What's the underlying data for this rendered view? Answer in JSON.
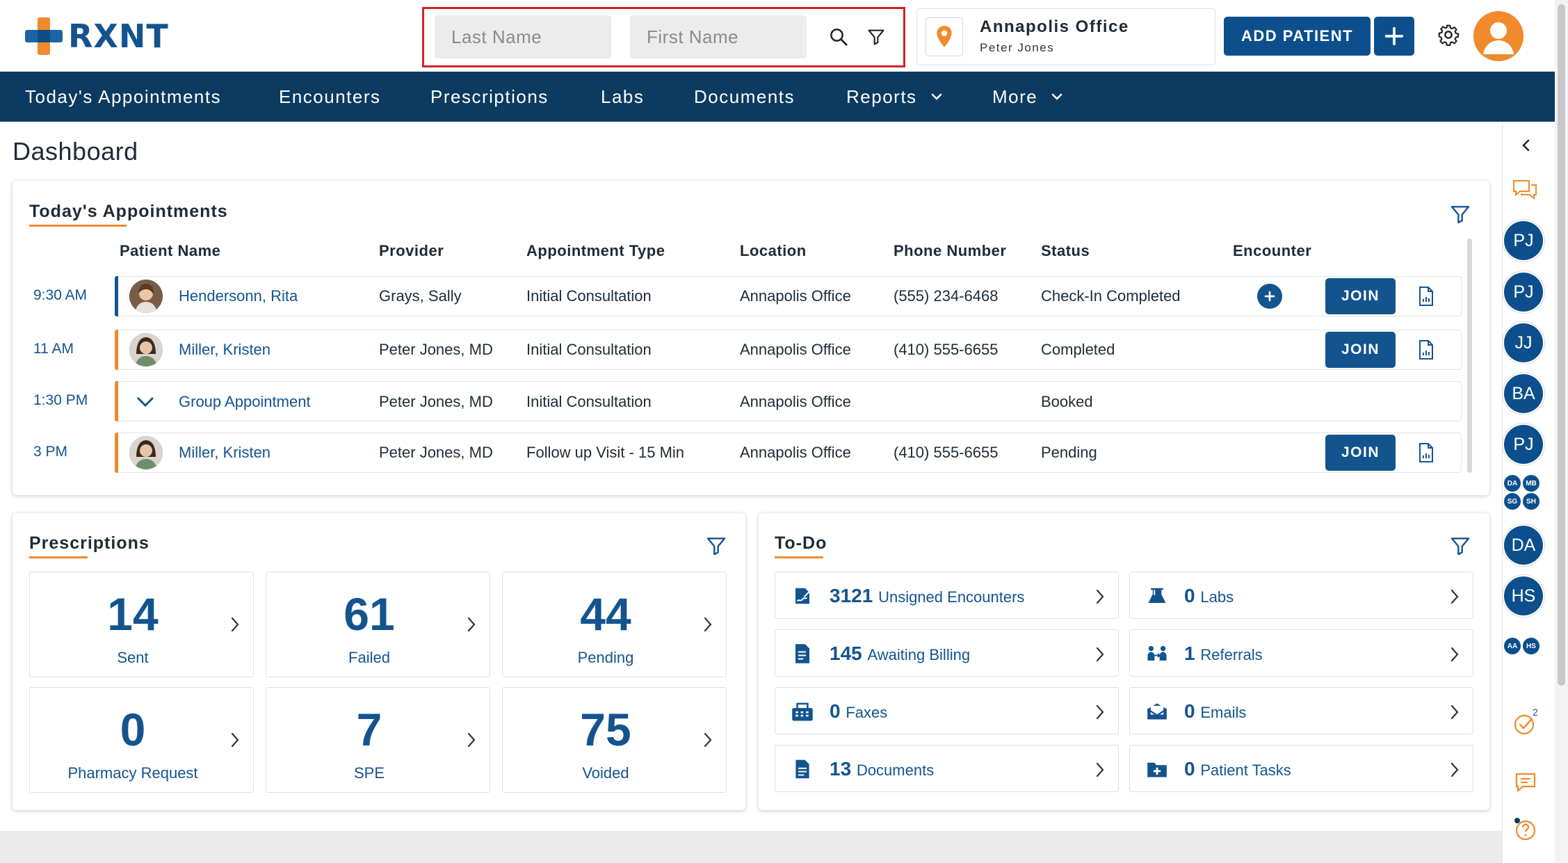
{
  "header": {
    "logo_text": "RXNT",
    "search": {
      "last_name_placeholder": "Last Name",
      "first_name_placeholder": "First Name"
    },
    "office": {
      "name": "Annapolis Office",
      "user": "Peter Jones"
    },
    "add_patient_label": "ADD PATIENT"
  },
  "nav": {
    "items": [
      {
        "label": "Today's Appointments"
      },
      {
        "label": "Encounters"
      },
      {
        "label": "Prescriptions"
      },
      {
        "label": "Labs"
      },
      {
        "label": "Documents"
      },
      {
        "label": "Reports"
      },
      {
        "label": "More"
      }
    ]
  },
  "page": {
    "title": "Dashboard"
  },
  "appointments": {
    "title": "Today's Appointments",
    "columns": [
      "Patient Name",
      "Provider",
      "Appointment Type",
      "Location",
      "Phone Number",
      "Status",
      "Encounter"
    ],
    "rows": [
      {
        "time": "9:30 AM",
        "patient": "Hendersonn, Rita",
        "provider": "Grays, Sally",
        "type": "Initial Consultation",
        "location": "Annapolis Office",
        "phone": "(555) 234-6468",
        "status": "Check-In Completed",
        "join_label": "JOIN"
      },
      {
        "time": "11 AM",
        "patient": "Miller, Kristen",
        "provider": "Peter Jones, MD",
        "type": "Initial Consultation",
        "location": "Annapolis Office",
        "phone": "(410) 555-6655",
        "status": "Completed",
        "join_label": "JOIN"
      },
      {
        "time": "1:30 PM",
        "patient": "Group Appointment",
        "provider": "Peter Jones, MD",
        "type": "Initial Consultation",
        "location": "Annapolis Office",
        "phone": "",
        "status": "Booked"
      },
      {
        "time": "3 PM",
        "patient": "Miller, Kristen",
        "provider": "Peter Jones, MD",
        "type": "Follow up Visit - 15 Min",
        "location": "Annapolis Office",
        "phone": "(410) 555-6655",
        "status": "Pending",
        "join_label": "JOIN"
      }
    ]
  },
  "prescriptions": {
    "title": "Prescriptions",
    "tiles": [
      {
        "value": "14",
        "label": "Sent"
      },
      {
        "value": "61",
        "label": "Failed"
      },
      {
        "value": "44",
        "label": "Pending"
      },
      {
        "value": "0",
        "label": "Pharmacy Request"
      },
      {
        "value": "7",
        "label": "SPE"
      },
      {
        "value": "75",
        "label": "Voided"
      }
    ]
  },
  "todo": {
    "title": "To-Do",
    "items": [
      {
        "count": "3121",
        "label": "Unsigned Encounters",
        "icon": "signature-icon"
      },
      {
        "count": "0",
        "label": "Labs",
        "icon": "flask-icon"
      },
      {
        "count": "145",
        "label": "Awaiting Billing",
        "icon": "invoice-icon"
      },
      {
        "count": "1",
        "label": "Referrals",
        "icon": "referral-icon"
      },
      {
        "count": "0",
        "label": "Faxes",
        "icon": "fax-icon"
      },
      {
        "count": "0",
        "label": "Emails",
        "icon": "email-icon"
      },
      {
        "count": "13",
        "label": "Documents",
        "icon": "document-icon"
      },
      {
        "count": "0",
        "label": "Patient Tasks",
        "icon": "folder-plus-icon"
      }
    ]
  },
  "right_rail": {
    "avatars_large": [
      "PJ",
      "PJ",
      "JJ",
      "BA",
      "PJ"
    ],
    "avatars_small_a": [
      "DA",
      "MB",
      "SG",
      "SH"
    ],
    "avatars_large_b": [
      "DA",
      "HS"
    ],
    "avatars_small_b": [
      "AA",
      "HS"
    ],
    "tasks_badge": "2"
  },
  "colors": {
    "brand_blue": "#13548f",
    "nav_bg": "#0c3a60",
    "accent_orange": "#f08a2c",
    "highlight_red": "#d4202a"
  }
}
